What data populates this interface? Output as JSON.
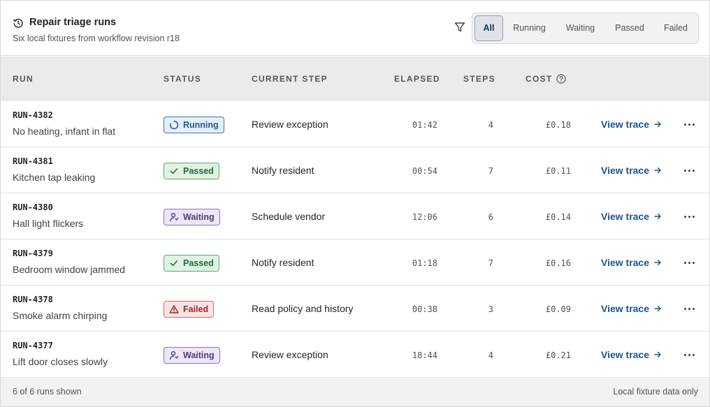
{
  "header": {
    "title": "Repair triage runs",
    "subtitle": "Six local fixtures from workflow revision r18",
    "filters": [
      {
        "label": "All",
        "active": true
      },
      {
        "label": "Running",
        "active": false
      },
      {
        "label": "Waiting",
        "active": false
      },
      {
        "label": "Passed",
        "active": false
      },
      {
        "label": "Failed",
        "active": false
      }
    ]
  },
  "columns": {
    "run": "RUN",
    "status": "STATUS",
    "current_step": "CURRENT STEP",
    "elapsed": "ELAPSED",
    "steps": "STEPS",
    "cost": "COST"
  },
  "rows": [
    {
      "id": "RUN-4382",
      "desc": "No heating, infant in flat",
      "status": "Running",
      "status_kind": "running",
      "step": "Review exception",
      "elapsed": "01:42",
      "steps": "4",
      "cost": "£0.18",
      "action": "View trace"
    },
    {
      "id": "RUN-4381",
      "desc": "Kitchen tap leaking",
      "status": "Passed",
      "status_kind": "passed",
      "step": "Notify resident",
      "elapsed": "00:54",
      "steps": "7",
      "cost": "£0.11",
      "action": "View trace"
    },
    {
      "id": "RUN-4380",
      "desc": "Hall light flickers",
      "status": "Waiting",
      "status_kind": "waiting",
      "step": "Schedule vendor",
      "elapsed": "12:06",
      "steps": "6",
      "cost": "£0.14",
      "action": "View trace"
    },
    {
      "id": "RUN-4379",
      "desc": "Bedroom window jammed",
      "status": "Passed",
      "status_kind": "passed",
      "step": "Notify resident",
      "elapsed": "01:18",
      "steps": "7",
      "cost": "£0.16",
      "action": "View trace"
    },
    {
      "id": "RUN-4378",
      "desc": "Smoke alarm chirping",
      "status": "Failed",
      "status_kind": "failed",
      "step": "Read policy and history",
      "elapsed": "00:38",
      "steps": "3",
      "cost": "£0.09",
      "action": "View trace"
    },
    {
      "id": "RUN-4377",
      "desc": "Lift door closes slowly",
      "status": "Waiting",
      "status_kind": "waiting",
      "step": "Review exception",
      "elapsed": "18:44",
      "steps": "4",
      "cost": "£0.21",
      "action": "View trace"
    }
  ],
  "footer": {
    "count": "6 of 6 runs shown",
    "note": "Local fixture data only"
  },
  "colors": {
    "accent": "#17558a",
    "running": "#1d5a92",
    "passed": "#1f6b31",
    "waiting": "#4f3a82",
    "failed": "#9b2727"
  }
}
